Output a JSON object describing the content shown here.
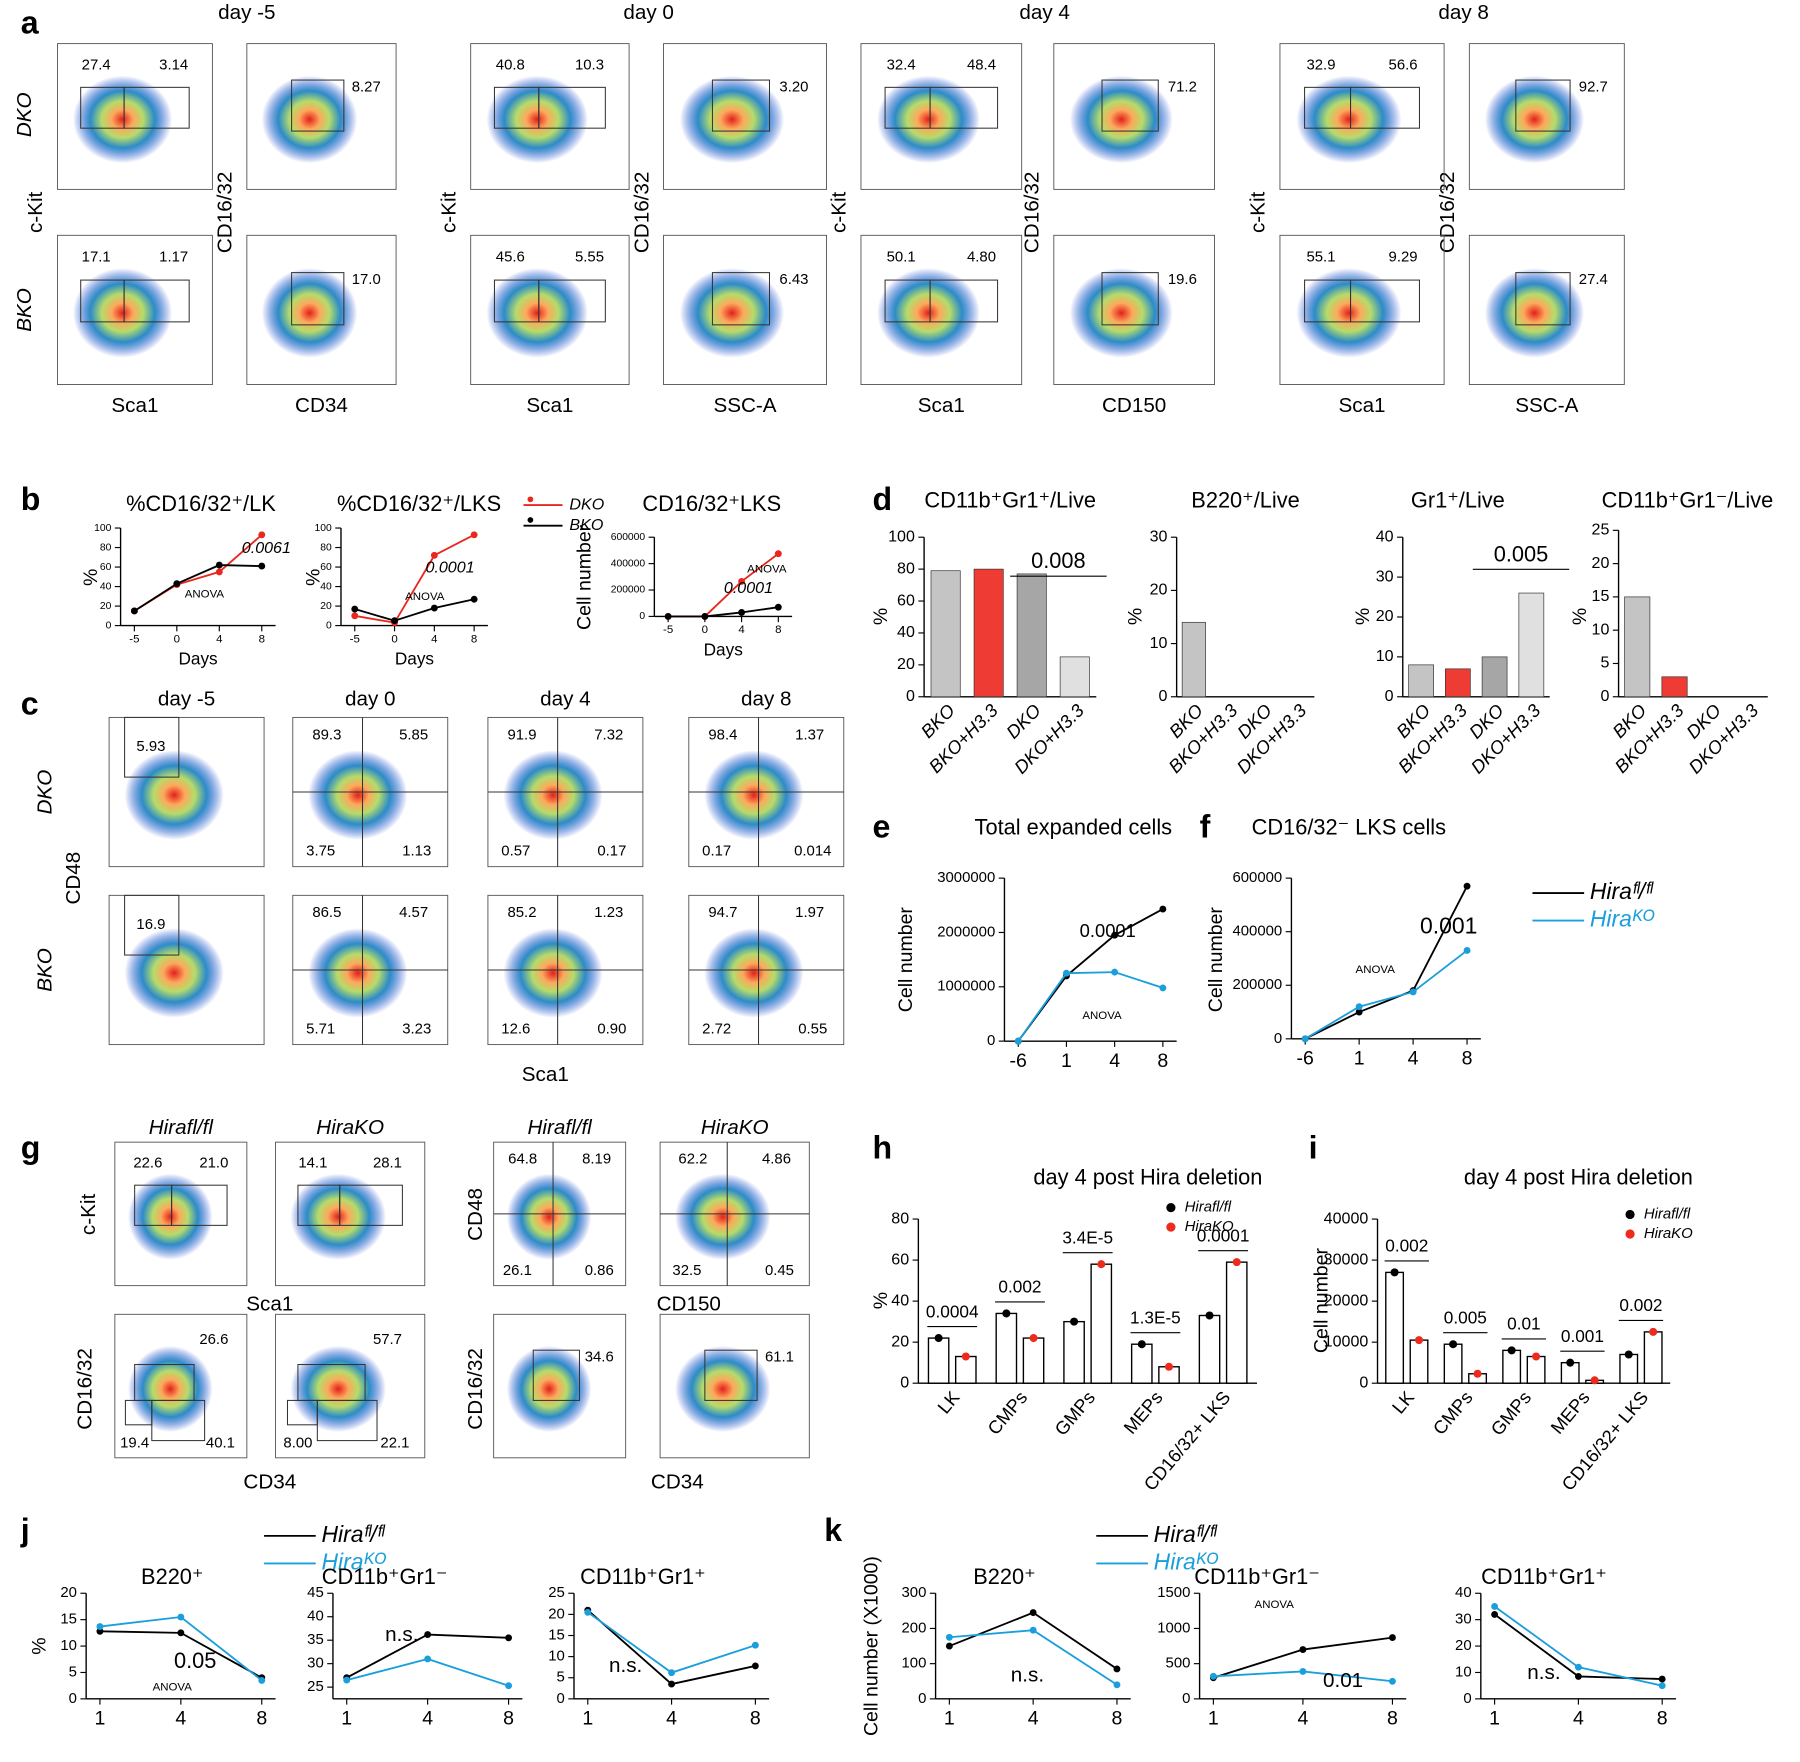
{
  "panel_letters": [
    "a",
    "b",
    "c",
    "d",
    "e",
    "f",
    "g",
    "h",
    "i",
    "j",
    "k"
  ],
  "flow_panels": [
    {
      "headers": [
        "day -5",
        "day 0",
        "day 4",
        "day 8"
      ],
      "row_labels": [
        "DKO",
        "BKO"
      ],
      "y_labels": [
        "c-Kit",
        "CD16/32",
        "c-Kit",
        "CD16/32",
        "c-Kit",
        "CD16/32",
        "c-Kit",
        "CD16/32"
      ],
      "x_labels": [
        "Sca1",
        "CD34",
        "Sca1",
        "SSC-A",
        "Sca1",
        "CD150",
        "Sca1",
        "SSC-A"
      ],
      "gates": [
        [
          [
            "27.4",
            "3.14"
          ],
          [
            "8.27"
          ],
          [
            "40.8",
            "10.3"
          ],
          [
            "3.20"
          ],
          [
            "32.4",
            "48.4"
          ],
          [
            "71.2"
          ],
          [
            "32.9",
            "56.6"
          ],
          [
            "92.7"
          ]
        ],
        [
          [
            "17.1",
            "1.17"
          ],
          [
            "17.0"
          ],
          [
            "45.6",
            "5.55"
          ],
          [
            "6.43"
          ],
          [
            "50.1",
            "4.80"
          ],
          [
            "19.6"
          ],
          [
            "55.1",
            "9.29"
          ],
          [
            "27.4"
          ]
        ]
      ]
    },
    {
      "headers": [
        "day -5",
        "day 0",
        "day 4",
        "day 8"
      ],
      "row_labels": [
        "DKO",
        "BKO"
      ],
      "y_labels": [
        "CD48"
      ],
      "x_labels": [
        "Sca1"
      ],
      "gates": [
        [
          [
            "5.93"
          ],
          [
            "89.3",
            "5.85",
            "3.75",
            "1.13"
          ],
          [
            "91.9",
            "7.32",
            "0.57",
            "0.17"
          ],
          [
            "98.4",
            "1.37",
            "0.17",
            "0.014"
          ]
        ],
        [
          [
            "16.9"
          ],
          [
            "86.5",
            "4.57",
            "5.71",
            "3.23"
          ],
          [
            "85.2",
            "1.23",
            "12.6",
            "0.90"
          ],
          [
            "94.7",
            "1.97",
            "2.72",
            "0.55"
          ]
        ]
      ]
    },
    {
      "headers": [
        "Hirafl/fl",
        "HiraKO",
        "Hirafl/fl",
        "HiraKO"
      ],
      "y_labels": [
        "c-Kit",
        "CD48",
        "CD16/32",
        "CD16/32"
      ],
      "x_labels": [
        "Sca1",
        "CD150",
        "CD34",
        "CD34"
      ],
      "gates": [
        [
          [
            "22.6",
            "21.0"
          ],
          [
            "14.1",
            "28.1"
          ],
          [
            "64.8",
            "8.19",
            "26.1",
            "0.86"
          ],
          [
            "62.2",
            "4.86",
            "32.5",
            "0.45"
          ]
        ],
        [
          [
            "26.6",
            "19.4",
            "40.1"
          ],
          [
            "57.7",
            "8.00",
            "22.1"
          ],
          [
            "34.6"
          ],
          [
            "61.1"
          ]
        ]
      ]
    }
  ],
  "chart_data": [
    {
      "type": "line",
      "title": "%CD16/32⁺/LK",
      "y_label": "%",
      "x_label": "Days",
      "categories": [
        "-5",
        "0",
        "4",
        "8"
      ],
      "series": [
        {
          "name": "DKO",
          "color": "#e8281e",
          "values": [
            15,
            42,
            55,
            93
          ]
        },
        {
          "name": "BKO",
          "color": "#000000",
          "values": [
            15,
            43,
            62,
            61
          ]
        }
      ],
      "ylim": [
        0,
        100
      ],
      "yticks": [
        0,
        20,
        40,
        60,
        80,
        100
      ],
      "annotations": [
        "0.0061",
        "ANOVA"
      ]
    },
    {
      "type": "line",
      "title": "%CD16/32⁺/LKS",
      "y_label": "%",
      "x_label": "Days",
      "categories": [
        "-5",
        "0",
        "4",
        "8"
      ],
      "series": [
        {
          "name": "DKO",
          "color": "#e8281e",
          "values": [
            10,
            3,
            72,
            93
          ]
        },
        {
          "name": "BKO",
          "color": "#000000",
          "values": [
            17,
            5,
            18,
            27
          ]
        }
      ],
      "ylim": [
        0,
        100
      ],
      "yticks": [
        0,
        20,
        40,
        60,
        80,
        100
      ],
      "annotations": [
        "0.0001",
        "ANOVA"
      ],
      "legend": "upper right"
    },
    {
      "type": "line",
      "title": "CD16/32⁺LKS",
      "y_label": "Cell number",
      "x_label": "Days",
      "categories": [
        "-5",
        "0",
        "4",
        "8"
      ],
      "series": [
        {
          "name": "DKO",
          "color": "#e8281e",
          "values": [
            0,
            0,
            265000,
            475000
          ]
        },
        {
          "name": "BKO",
          "color": "#000000",
          "values": [
            0,
            0,
            30000,
            70000
          ]
        }
      ],
      "ylim": [
        0,
        600000
      ],
      "yticks": [
        0,
        200000,
        400000,
        600000
      ],
      "annotations": [
        "0.0001",
        "ANOVA"
      ]
    },
    {
      "type": "bar",
      "title": "CD11b⁺Gr1⁺/Live",
      "y_label": "%",
      "categories": [
        "BKO",
        "BKO+H3.3",
        "DKO",
        "DKO+H3.3"
      ],
      "values": [
        79,
        80,
        77,
        25
      ],
      "colors": [
        "#c4c4c4",
        "#ee3b33",
        "#a6a6a6",
        "#e0e0e0"
      ],
      "ylim": [
        0,
        100
      ],
      "yticks": [
        0,
        20,
        40,
        60,
        80,
        100
      ],
      "annotations": [
        "0.008"
      ]
    },
    {
      "type": "bar",
      "title": "B220⁺/Live",
      "y_label": "%",
      "categories": [
        "BKO",
        "BKO+H3.3",
        "DKO",
        "DKO+H3.3"
      ],
      "values": [
        14,
        0,
        0,
        0
      ],
      "colors": [
        "#c4c4c4",
        "#ee3b33",
        "#a6a6a6",
        "#e0e0e0"
      ],
      "ylim": [
        0,
        30
      ],
      "yticks": [
        0,
        10,
        20,
        30
      ]
    },
    {
      "type": "bar",
      "title": "Gr1⁺/Live",
      "y_label": "%",
      "categories": [
        "BKO",
        "BKO+H3.3",
        "DKO",
        "DKO+H3.3"
      ],
      "values": [
        8,
        7,
        10,
        26
      ],
      "colors": [
        "#c4c4c4",
        "#ee3b33",
        "#a6a6a6",
        "#e0e0e0"
      ],
      "ylim": [
        0,
        40
      ],
      "yticks": [
        0,
        10,
        20,
        30,
        40
      ],
      "annotations": [
        "0.005"
      ]
    },
    {
      "type": "bar",
      "title": "CD11b⁺Gr1⁻/Live",
      "y_label": "%",
      "categories": [
        "BKO",
        "BKO+H3.3",
        "DKO",
        "DKO+H3.3"
      ],
      "values": [
        15,
        3,
        0,
        0
      ],
      "colors": [
        "#c4c4c4",
        "#ee3b33",
        "#a6a6a6",
        "#e0e0e0"
      ],
      "ylim": [
        0,
        25
      ],
      "yticks": [
        0,
        5,
        10,
        15,
        20,
        25
      ]
    },
    {
      "type": "line",
      "title": "Total expanded cells",
      "y_label": "Cell number",
      "categories": [
        "-6",
        "1",
        "4",
        "8"
      ],
      "series": [
        {
          "name": "Hiraᶠˡ/ᶠˡ",
          "color": "#000000",
          "values": [
            0,
            1200000,
            1950000,
            2430000
          ]
        },
        {
          "name": "Hiraᴷᴼ",
          "color": "#1a9fdc",
          "values": [
            0,
            1250000,
            1270000,
            980000
          ]
        }
      ],
      "ylim": [
        0,
        3000000
      ],
      "yticks": [
        0,
        1000000,
        2000000,
        3000000
      ],
      "annotations": [
        "0.0001",
        "ANOVA"
      ]
    },
    {
      "type": "line",
      "title": "CD16/32⁻ LKS cells",
      "y_label": "Cell number",
      "categories": [
        "-6",
        "1",
        "4",
        "8"
      ],
      "series": [
        {
          "name": "Hiraᶠˡ/ᶠˡ",
          "color": "#000000",
          "values": [
            0,
            100000,
            180000,
            570000
          ]
        },
        {
          "name": "Hiraᴷᴼ",
          "color": "#1a9fdc",
          "values": [
            0,
            120000,
            175000,
            330000
          ]
        }
      ],
      "ylim": [
        0,
        600000
      ],
      "yticks": [
        0,
        200000,
        400000,
        600000
      ],
      "annotations": [
        "0.001",
        "ANOVA"
      ],
      "legend": "right"
    },
    {
      "type": "grouped-bar",
      "title": "day 4 post Hira deletion",
      "y_label": "%",
      "categories": [
        "LK",
        "CMPs",
        "GMPs",
        "MEPs",
        "CD16/32+ LKS"
      ],
      "series": [
        {
          "name": "Hirafl/fl",
          "color": "#000000",
          "values": [
            22,
            34,
            30,
            19,
            33
          ]
        },
        {
          "name": "HiraKO",
          "color": "#ee2a1f",
          "values": [
            13,
            22,
            58,
            8,
            59
          ]
        }
      ],
      "ylim": [
        0,
        80
      ],
      "yticks": [
        0,
        20,
        40,
        60,
        80
      ],
      "annotations": [
        "0.0004",
        "0.002",
        "3.4E-5",
        "1.3E-5",
        "0.0001"
      ],
      "legend": "upper right"
    },
    {
      "type": "grouped-bar",
      "title": "day 4 post Hira deletion",
      "y_label": "Cell number",
      "categories": [
        "LK",
        "CMPs",
        "GMPs",
        "MEPs",
        "CD16/32+ LKS"
      ],
      "series": [
        {
          "name": "Hirafl/fl",
          "color": "#000000",
          "values": [
            27000,
            9500,
            8000,
            5000,
            7000
          ]
        },
        {
          "name": "HiraKO",
          "color": "#ee2a1f",
          "values": [
            10500,
            2300,
            6500,
            700,
            12500
          ]
        }
      ],
      "ylim": [
        0,
        40000
      ],
      "yticks": [
        0,
        10000,
        20000,
        30000,
        40000
      ],
      "annotations": [
        "0.002",
        "0.005",
        "0.01",
        "0.001",
        "0.002"
      ],
      "legend": "upper right"
    },
    {
      "type": "line",
      "title": "B220⁺",
      "y_label": "%",
      "categories": [
        "1",
        "4",
        "8"
      ],
      "series": [
        {
          "name": "Hiraᶠˡ/ᶠˡ",
          "color": "#000000",
          "values": [
            12.8,
            12.5,
            4
          ]
        },
        {
          "name": "Hiraᴷᴼ",
          "color": "#1a9fdc",
          "values": [
            13.7,
            15.5,
            3.5
          ]
        }
      ],
      "ylim": [
        0,
        20
      ],
      "yticks": [
        0,
        5,
        10,
        15,
        20
      ],
      "annotations": [
        "0.05",
        "ANOVA"
      ],
      "legend": "above"
    },
    {
      "type": "line",
      "title": "CD11b⁺Gr1⁻",
      "categories": [
        "1",
        "4",
        "8"
      ],
      "series": [
        {
          "name": "Hiraᶠˡ/ᶠˡ",
          "color": "#000000",
          "values": [
            27,
            36.2,
            35.5
          ]
        },
        {
          "name": "Hiraᴷᴼ",
          "color": "#1a9fdc",
          "values": [
            26.5,
            31,
            25.3
          ]
        }
      ],
      "ylim": [
        22.5,
        45
      ],
      "yticks": [
        25,
        30,
        35,
        40,
        45
      ],
      "annotations": [
        "n.s."
      ]
    },
    {
      "type": "line",
      "title": "CD11b⁺Gr1⁺",
      "categories": [
        "1",
        "4",
        "8"
      ],
      "series": [
        {
          "name": "Hiraᶠˡ/ᶠˡ",
          "color": "#000000",
          "values": [
            21,
            3.5,
            7.8
          ]
        },
        {
          "name": "Hiraᴷᴼ",
          "color": "#1a9fdc",
          "values": [
            20.5,
            6.2,
            12.7
          ]
        }
      ],
      "ylim": [
        0,
        25
      ],
      "yticks": [
        0,
        5,
        10,
        15,
        20,
        25
      ],
      "annotations": [
        "n.s."
      ]
    },
    {
      "type": "line",
      "title": "B220⁺",
      "y_label": "Cell number (X1000)",
      "categories": [
        "1",
        "4",
        "8"
      ],
      "series": [
        {
          "name": "Hiraᶠˡ/ᶠˡ",
          "color": "#000000",
          "values": [
            150,
            245,
            85
          ]
        },
        {
          "name": "Hiraᴷᴼ",
          "color": "#1a9fdc",
          "values": [
            175,
            195,
            40
          ]
        }
      ],
      "ylim": [
        0,
        300
      ],
      "yticks": [
        0,
        100,
        200,
        300
      ],
      "annotations": [
        "n.s."
      ],
      "legend": "above"
    },
    {
      "type": "line",
      "title": "CD11b⁺Gr1⁻",
      "categories": [
        "1",
        "4",
        "8"
      ],
      "series": [
        {
          "name": "Hiraᶠˡ/ᶠˡ",
          "color": "#000000",
          "values": [
            300,
            700,
            870
          ]
        },
        {
          "name": "Hiraᴷᴼ",
          "color": "#1a9fdc",
          "values": [
            320,
            390,
            250
          ]
        }
      ],
      "ylim": [
        0,
        1500
      ],
      "yticks": [
        0,
        500,
        1000,
        1500
      ],
      "annotations": [
        "ANOVA",
        "0.01"
      ]
    },
    {
      "type": "line",
      "title": "CD11b⁺Gr1⁺",
      "categories": [
        "1",
        "4",
        "8"
      ],
      "series": [
        {
          "name": "Hiraᶠˡ/ᶠˡ",
          "color": "#000000",
          "values": [
            32,
            8.5,
            7.5
          ]
        },
        {
          "name": "Hiraᴷᴼ",
          "color": "#1a9fdc",
          "values": [
            35,
            12,
            5
          ]
        }
      ],
      "ylim": [
        0,
        40
      ],
      "yticks": [
        0,
        10,
        20,
        30,
        40
      ],
      "annotations": [
        "n.s."
      ]
    }
  ]
}
